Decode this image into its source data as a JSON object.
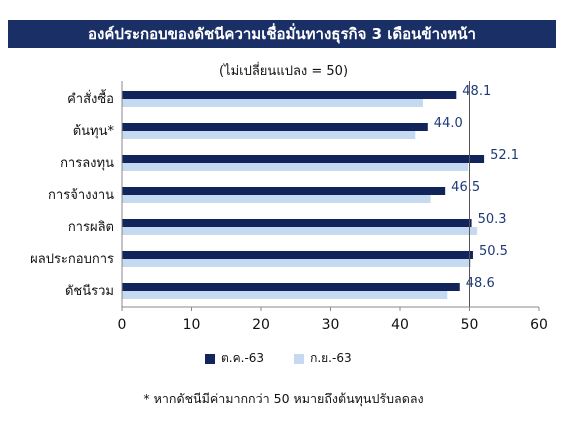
{
  "title": "องค์ประกอบของดัชนีความเชื่อมั่นทางธุรกิจ 3 เดือนข้างหน้า",
  "subtitle": "(ไม่เปลี่ยนแปลง = 50)",
  "footnote": "* หากดัชนีมีค่ามากกว่า 50 หมายถึงต้นทุนปรับลดลง",
  "colors": {
    "title_bg": "#1a2f66",
    "series1": "#13235c",
    "series2": "#c5d9f1",
    "label_text": "#1f3a78",
    "ref_line": "#555555"
  },
  "chart_data": {
    "type": "bar",
    "orientation": "horizontal",
    "categories": [
      "คำสั่งซื้อ",
      "ต้นทุน*",
      "การลงทุน",
      "การจ้างงาน",
      "การผลิต",
      "ผลประกอบการ",
      "ดัชนีรวม"
    ],
    "series": [
      {
        "name": "ต.ค.-63",
        "values": [
          48.1,
          44.0,
          52.1,
          46.5,
          50.3,
          50.5,
          48.6
        ],
        "data_labels": [
          "48.1",
          "44.0",
          "52.1",
          "46.5",
          "50.3",
          "50.5",
          "48.6"
        ]
      },
      {
        "name": "ก.ย.-63",
        "values": [
          43.3,
          42.2,
          49.8,
          44.4,
          51.1,
          50.2,
          46.8
        ]
      }
    ],
    "xlim": [
      0,
      60
    ],
    "xticks": [
      "0",
      "10",
      "20",
      "30",
      "40",
      "50",
      "60"
    ],
    "reference_line": 50,
    "grid": false,
    "legend_position": "bottom"
  }
}
